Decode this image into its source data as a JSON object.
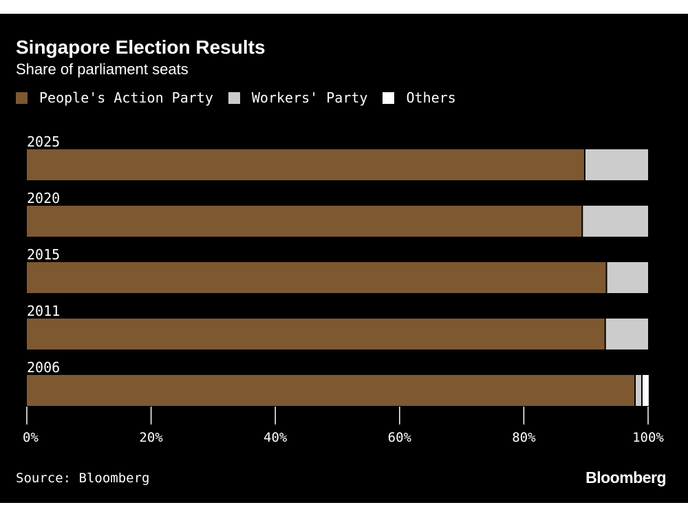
{
  "chart_data": {
    "type": "bar",
    "orientation": "horizontal",
    "stacked": true,
    "title": "Singapore Election Results",
    "subtitle": "Share of parliament seats",
    "categories": [
      "2025",
      "2020",
      "2015",
      "2011",
      "2006"
    ],
    "series": [
      {
        "name": "People's Action Party",
        "color": "#7e5830",
        "values": [
          89.8,
          89.4,
          93.3,
          93.1,
          97.9
        ]
      },
      {
        "name": "Workers' Party",
        "color": "#cccccc",
        "values": [
          10.2,
          10.6,
          6.7,
          6.9,
          1.1
        ]
      },
      {
        "name": "Others",
        "color": "#ffffff",
        "values": [
          0,
          0,
          0,
          0,
          1.1
        ]
      }
    ],
    "xlim": [
      0,
      100
    ],
    "x_ticks": [
      "0%",
      "20%",
      "40%",
      "60%",
      "80%",
      "100%"
    ],
    "legend_position": "top-left",
    "grid": false
  },
  "source": "Source: Bloomberg",
  "brand": "Bloomberg",
  "colors": {
    "background": "#000000",
    "text": "#ffffff"
  }
}
